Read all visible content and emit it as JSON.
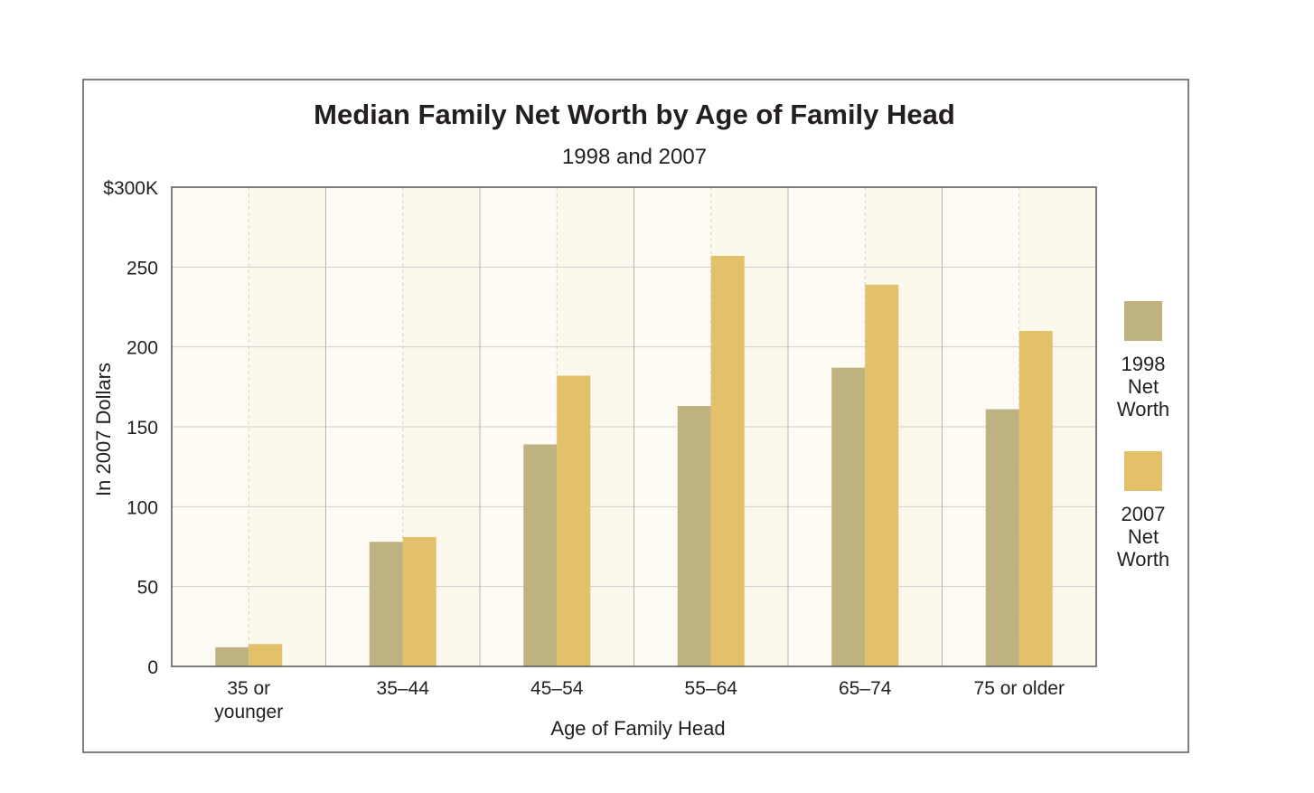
{
  "chart_data": {
    "type": "bar",
    "title": "Median Family Net Worth by Age of Family Head",
    "subtitle": "1998 and 2007",
    "xlabel": "Age of Family Head",
    "ylabel": "In 2007 Dollars",
    "categories": [
      "35 or younger",
      "35–44",
      "45–54",
      "55–64",
      "65–74",
      "75 or older"
    ],
    "category_label_lines": [
      [
        "35 or",
        "younger"
      ],
      [
        "35–44"
      ],
      [
        "45–54"
      ],
      [
        "55–64"
      ],
      [
        "65–74"
      ],
      [
        "75 or older"
      ]
    ],
    "series": [
      {
        "name": "1998 Net Worth",
        "legend_lines": [
          "1998",
          "Net",
          "Worth"
        ],
        "color": "#bfb281",
        "values": [
          12,
          78,
          139,
          163,
          187,
          161
        ]
      },
      {
        "name": "2007 Net Worth",
        "legend_lines": [
          "2007",
          "Net",
          "Worth"
        ],
        "color": "#e3c16a",
        "values": [
          14,
          81,
          182,
          257,
          239,
          210
        ]
      }
    ],
    "ylim": [
      0,
      300
    ],
    "yticks": [
      0,
      50,
      100,
      150,
      200,
      250,
      300
    ],
    "ytick_labels": [
      "0",
      "50",
      "100",
      "150",
      "200",
      "250",
      "$300K"
    ],
    "grid": true,
    "legend_position": "right",
    "colors": {
      "plot_background_light": "#fefbf5",
      "plot_background_tint": "#fdf8ec",
      "gridline": "#cfcfcf",
      "frame": "#555555"
    }
  }
}
